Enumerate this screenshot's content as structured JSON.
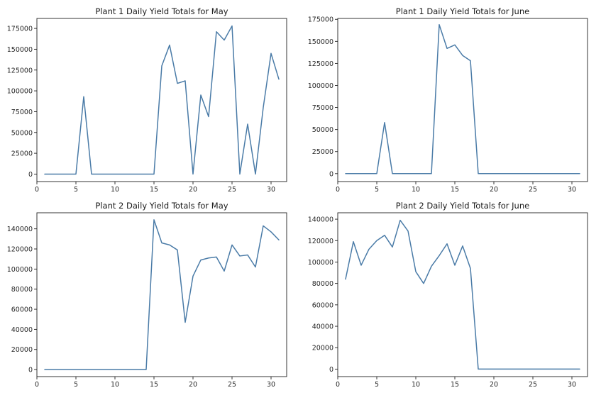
{
  "figure": {
    "line_color": "#4a7ba7"
  },
  "chart_data": [
    {
      "type": "line",
      "title": "Plant 1 Daily Yield Totals for May",
      "xlim": [
        0,
        32
      ],
      "ylim": [
        -9000,
        187000
      ],
      "xticks": [
        0,
        5,
        10,
        15,
        20,
        25,
        30
      ],
      "yticks": [
        0,
        25000,
        50000,
        75000,
        100000,
        125000,
        150000,
        175000
      ],
      "grid": false,
      "series": [
        {
          "x": [
            1,
            2,
            3,
            4,
            5,
            6,
            7,
            8,
            9,
            10,
            11,
            12,
            13,
            14,
            15,
            16,
            17,
            18,
            19,
            20,
            21,
            22,
            23,
            24,
            25,
            26,
            27,
            28,
            29,
            30,
            31
          ],
          "values": [
            0,
            0,
            0,
            0,
            0,
            93000,
            0,
            0,
            0,
            0,
            0,
            0,
            0,
            0,
            0,
            130000,
            155000,
            109000,
            112000,
            0,
            95000,
            69000,
            171000,
            161000,
            178000,
            0,
            60000,
            0,
            80000,
            145000,
            114000
          ]
        }
      ]
    },
    {
      "type": "line",
      "title": "Plant 1 Daily Yield Totals for June",
      "xlim": [
        0,
        32
      ],
      "ylim": [
        -9000,
        176000
      ],
      "xticks": [
        0,
        5,
        10,
        15,
        20,
        25,
        30
      ],
      "yticks": [
        0,
        25000,
        50000,
        75000,
        100000,
        125000,
        150000,
        175000
      ],
      "grid": false,
      "series": [
        {
          "x": [
            1,
            2,
            3,
            4,
            5,
            6,
            7,
            8,
            9,
            10,
            11,
            12,
            13,
            14,
            15,
            16,
            17,
            18,
            19,
            20,
            21,
            22,
            23,
            24,
            25,
            26,
            27,
            28,
            29,
            30,
            31
          ],
          "values": [
            0,
            0,
            0,
            0,
            0,
            58000,
            0,
            0,
            0,
            0,
            0,
            0,
            169000,
            142000,
            146000,
            134000,
            128000,
            0,
            0,
            0,
            0,
            0,
            0,
            0,
            0,
            0,
            0,
            0,
            0,
            0,
            0
          ]
        }
      ]
    },
    {
      "type": "line",
      "title": "Plant 2 Daily Yield Totals for May",
      "xlim": [
        0,
        32
      ],
      "ylim": [
        -7000,
        156000
      ],
      "xticks": [
        0,
        5,
        10,
        15,
        20,
        25,
        30
      ],
      "yticks": [
        0,
        20000,
        40000,
        60000,
        80000,
        100000,
        120000,
        140000
      ],
      "grid": false,
      "series": [
        {
          "x": [
            1,
            2,
            3,
            4,
            5,
            6,
            7,
            8,
            9,
            10,
            11,
            12,
            13,
            14,
            15,
            16,
            17,
            18,
            19,
            20,
            21,
            22,
            23,
            24,
            25,
            26,
            27,
            28,
            29,
            30,
            31
          ],
          "values": [
            0,
            0,
            0,
            0,
            0,
            0,
            0,
            0,
            0,
            0,
            0,
            0,
            0,
            0,
            149000,
            126000,
            124000,
            119000,
            47000,
            93000,
            109000,
            111000,
            112000,
            98000,
            124000,
            113000,
            114000,
            102000,
            143000,
            137000,
            129000
          ]
        }
      ]
    },
    {
      "type": "line",
      "title": "Plant 2 Daily Yield Totals for June",
      "xlim": [
        0,
        32
      ],
      "ylim": [
        -7000,
        146000
      ],
      "xticks": [
        0,
        5,
        10,
        15,
        20,
        25,
        30
      ],
      "yticks": [
        0,
        20000,
        40000,
        60000,
        80000,
        100000,
        120000,
        140000
      ],
      "grid": false,
      "series": [
        {
          "x": [
            1,
            2,
            3,
            4,
            5,
            6,
            7,
            8,
            9,
            10,
            11,
            12,
            13,
            14,
            15,
            16,
            17,
            18,
            19,
            20,
            21,
            22,
            23,
            24,
            25,
            26,
            27,
            28,
            29,
            30,
            31
          ],
          "values": [
            84000,
            119000,
            97000,
            112000,
            120000,
            125000,
            114000,
            139000,
            129000,
            91000,
            80000,
            96000,
            106000,
            117000,
            97000,
            115000,
            94000,
            0,
            0,
            0,
            0,
            0,
            0,
            0,
            0,
            0,
            0,
            0,
            0,
            0,
            0
          ]
        }
      ]
    }
  ]
}
